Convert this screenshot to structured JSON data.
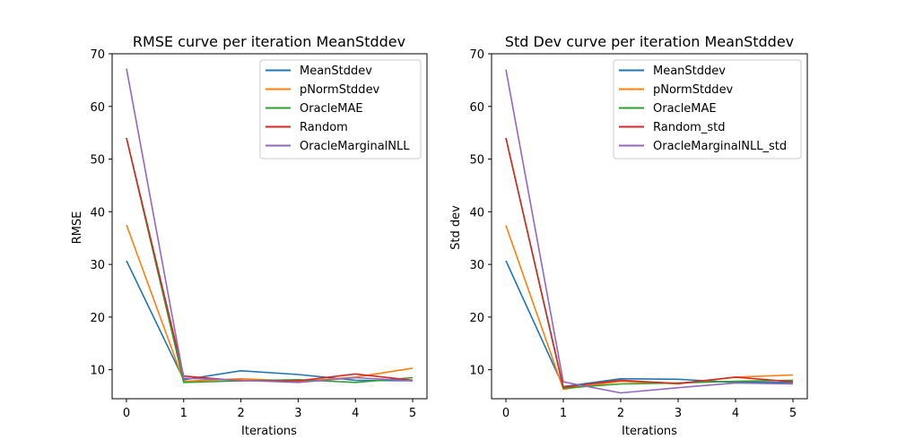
{
  "chart_data": [
    {
      "type": "line",
      "title": "RMSE curve per iteration MeanStddev",
      "xlabel": "Iterations",
      "ylabel": "RMSE",
      "x": [
        0,
        1,
        2,
        3,
        4,
        5
      ],
      "xlim": [
        -0.25,
        5.25
      ],
      "ylim": [
        4.5,
        70
      ],
      "xticks": [
        0,
        1,
        2,
        3,
        4,
        5
      ],
      "yticks": [
        10,
        20,
        30,
        40,
        50,
        60,
        70
      ],
      "legend_position": "upper right",
      "series": [
        {
          "name": "MeanStddev",
          "color": "#1f77b4",
          "values": [
            30.7,
            8.1,
            9.8,
            9.1,
            8.0,
            7.9
          ]
        },
        {
          "name": "pNormStddev",
          "color": "#ff7f0e",
          "values": [
            37.5,
            7.8,
            8.3,
            7.8,
            8.6,
            10.3
          ]
        },
        {
          "name": "OracleMAE",
          "color": "#2ca02c",
          "values": [
            54.0,
            7.6,
            7.9,
            8.1,
            7.6,
            8.5
          ]
        },
        {
          "name": "Random",
          "color": "#d62728",
          "values": [
            54.0,
            8.8,
            7.9,
            7.9,
            9.2,
            8.0
          ]
        },
        {
          "name": "OracleMarginalNLL",
          "color": "#9467bd",
          "values": [
            67.2,
            8.4,
            8.0,
            7.6,
            8.5,
            7.9
          ]
        }
      ]
    },
    {
      "type": "line",
      "title": "Std Dev curve per iteration MeanStddev",
      "xlabel": "Iterations",
      "ylabel": "Std dev",
      "x": [
        0,
        1,
        2,
        3,
        4,
        5
      ],
      "xlim": [
        -0.25,
        5.25
      ],
      "ylim": [
        4.5,
        70
      ],
      "xticks": [
        0,
        1,
        2,
        3,
        4,
        5
      ],
      "yticks": [
        10,
        20,
        30,
        40,
        50,
        60,
        70
      ],
      "legend_position": "upper right",
      "series": [
        {
          "name": "MeanStddev",
          "color": "#1f77b4",
          "values": [
            30.7,
            6.8,
            8.3,
            8.2,
            7.6,
            7.6
          ]
        },
        {
          "name": "pNormStddev",
          "color": "#ff7f0e",
          "values": [
            37.4,
            6.3,
            7.8,
            7.3,
            8.6,
            9.0
          ]
        },
        {
          "name": "OracleMAE",
          "color": "#2ca02c",
          "values": [
            54.0,
            6.5,
            7.3,
            7.5,
            7.8,
            8.0
          ]
        },
        {
          "name": "Random_std",
          "color": "#d62728",
          "values": [
            54.0,
            6.7,
            8.0,
            7.4,
            8.6,
            7.7
          ]
        },
        {
          "name": "OracleMarginalNLL_std",
          "color": "#9467bd",
          "values": [
            67.0,
            7.7,
            5.6,
            6.6,
            7.5,
            7.3
          ]
        }
      ]
    }
  ]
}
